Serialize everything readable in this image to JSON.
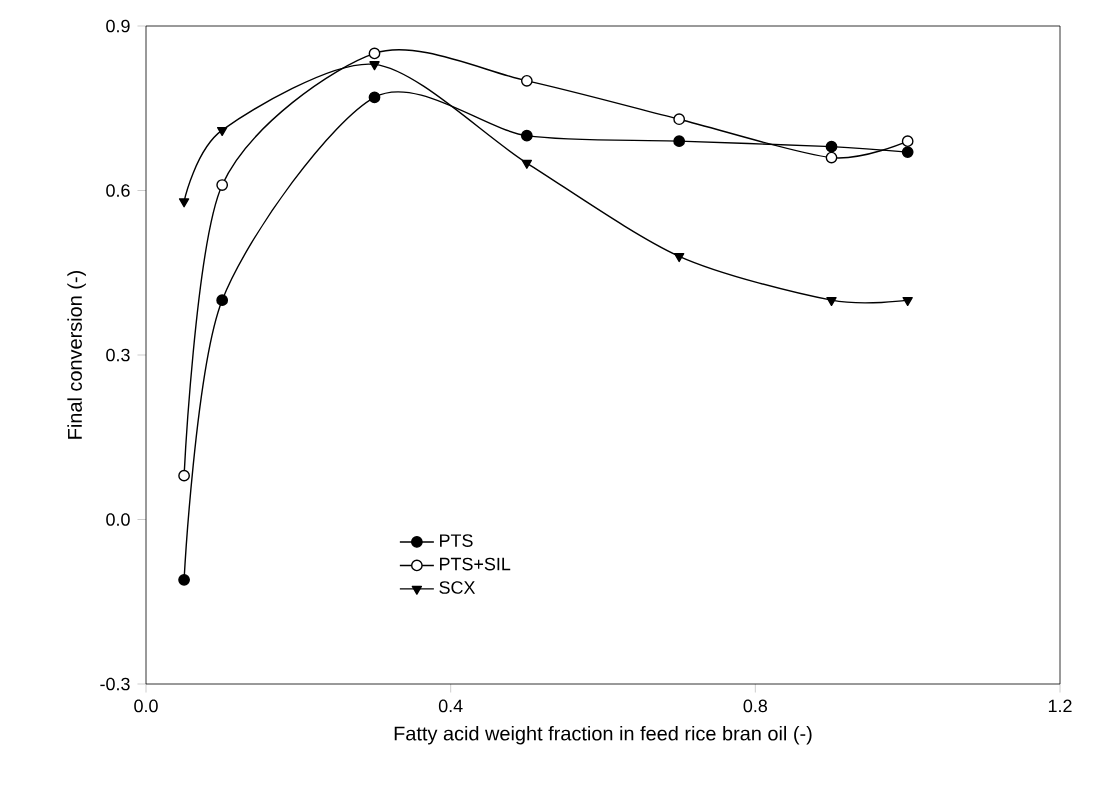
{
  "chart_data": {
    "type": "line",
    "xlabel": "Fatty acid weight fraction in feed rice bran oil (-)",
    "ylabel": "Final conversion (-)",
    "xlim": [
      0,
      1.2
    ],
    "ylim": [
      -0.3,
      0.9
    ],
    "xticks": [
      {
        "value": 0,
        "label": "0.0"
      },
      0.4,
      0.8,
      1.2
    ],
    "yticks": [
      -0.3,
      {
        "value": 0,
        "label": "0.0"
      },
      0.3,
      0.6,
      0.9
    ],
    "grid": false,
    "legend": "bottom left",
    "series": [
      {
        "name": "PTS",
        "color": "#000000",
        "marker": "circle",
        "x": [
          0.05,
          0.1,
          0.3,
          0.5,
          0.7,
          0.9,
          1.0
        ],
        "values": [
          -0.11,
          0.4,
          0.77,
          0.7,
          0.69,
          0.68,
          0.67
        ]
      },
      {
        "name": "PTS+SIL",
        "color": "#000000",
        "marker": "open circle",
        "x": [
          0.05,
          0.1,
          0.3,
          0.5,
          0.7,
          0.9,
          1.0
        ],
        "values": [
          0.08,
          0.61,
          0.85,
          0.8,
          0.73,
          0.66,
          0.69
        ]
      },
      {
        "name": "SCX",
        "color": "#000000",
        "marker": "triangle down",
        "x": [
          0.05,
          0.1,
          0.3,
          0.5,
          0.7,
          0.9,
          1.0
        ],
        "values": [
          0.58,
          0.71,
          0.83,
          0.65,
          0.48,
          0.4,
          0.4
        ]
      }
    ]
  }
}
